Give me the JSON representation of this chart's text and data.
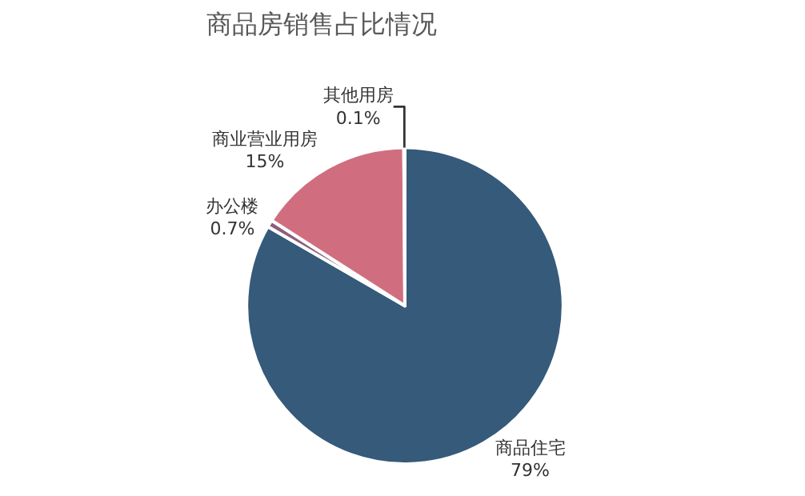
{
  "chart_data": {
    "type": "pie",
    "title": "商品房销售占比情况",
    "categories": [
      "商品住宅",
      "办公楼",
      "商业营业用房",
      "其他用房"
    ],
    "values": [
      79,
      0.7,
      15,
      0.1
    ],
    "colors": [
      "#355a7a",
      "#8c5f80",
      "#d06e80",
      "#e05a70"
    ],
    "value_labels": [
      "79%",
      "0.7%",
      "15%",
      "0.1%"
    ],
    "legend": false
  }
}
